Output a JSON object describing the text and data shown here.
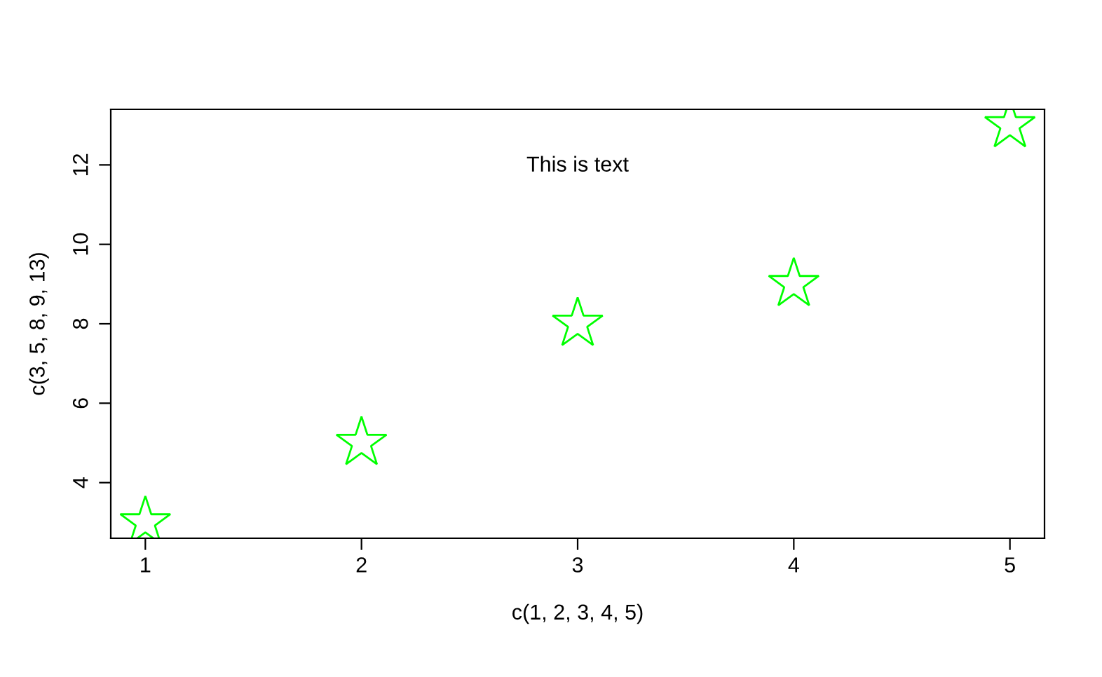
{
  "chart_data": {
    "type": "scatter",
    "xlabel": "c(1, 2, 3, 4, 5)",
    "ylabel": "c(3, 5, 8, 9, 13)",
    "x": [
      1,
      2,
      3,
      4,
      5
    ],
    "series": [
      {
        "color": "#00ff00",
        "values": [
          3,
          5,
          8,
          9,
          13
        ]
      }
    ],
    "xlim": [
      0.84,
      5.16
    ],
    "ylim": [
      2.6,
      13.4
    ],
    "xticks": [
      1,
      2,
      3,
      4,
      5
    ],
    "yticks": [
      4,
      6,
      8,
      10,
      12
    ],
    "marker": "star",
    "grid": false,
    "annotations": [
      "This is text"
    ]
  }
}
